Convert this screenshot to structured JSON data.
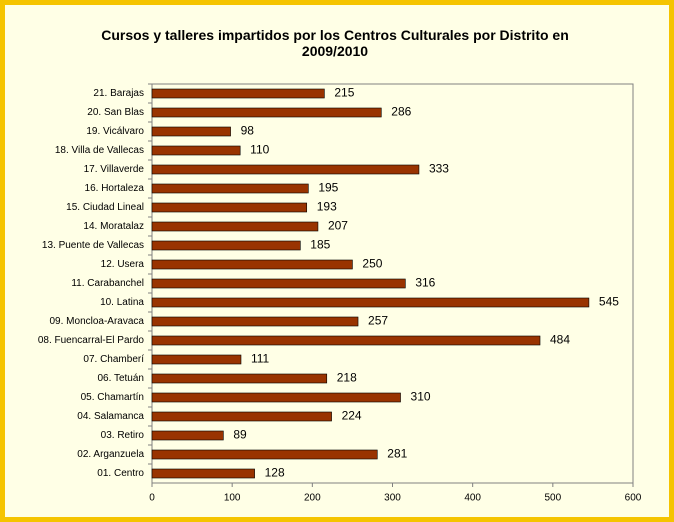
{
  "chart_data": {
    "type": "bar",
    "orientation": "horizontal",
    "title": "Cursos y talleres impartidos por los Centros Culturales por Distrito en 2009/2010",
    "categories": [
      "21. Barajas",
      "20. San Blas",
      "19. Vicálvaro",
      "18. Villa de Vallecas",
      "17. Villaverde",
      "16. Hortaleza",
      "15. Ciudad Lineal",
      "14. Moratalaz",
      "13. Puente de Vallecas",
      "12. Usera",
      "11. Carabanchel",
      "10. Latina",
      "09. Moncloa-Aravaca",
      "08. Fuencarral-El Pardo",
      "07. Chamberí",
      "06. Tetuán",
      "05. Chamartín",
      "04. Salamanca",
      "03. Retiro",
      "02. Arganzuela",
      "01. Centro"
    ],
    "values": [
      215,
      286,
      98,
      110,
      333,
      195,
      193,
      207,
      185,
      250,
      316,
      545,
      257,
      484,
      111,
      218,
      310,
      224,
      89,
      281,
      128
    ],
    "color": "#993300",
    "xlim": [
      0,
      600
    ],
    "xticks": [
      0,
      100,
      200,
      300,
      400,
      500,
      600
    ],
    "grid": false
  }
}
